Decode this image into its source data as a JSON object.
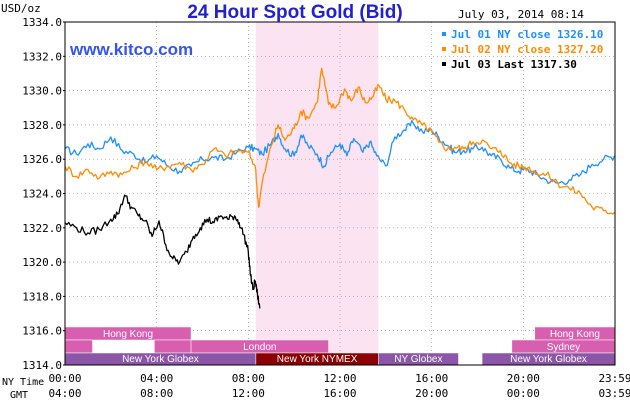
{
  "chart_data": {
    "type": "line",
    "title": "24 Hour Spot Gold (Bid)",
    "watermark": "www.kitco.com",
    "date_stamp": "July 03, 2014 08:14",
    "y_unit_label": "USD/oz",
    "ylim": [
      1314.0,
      1334.0
    ],
    "y_ticks": [
      "1334.0",
      "1332.0",
      "1330.0",
      "1328.0",
      "1326.0",
      "1324.0",
      "1322.0",
      "1320.0",
      "1318.0",
      "1316.0",
      "1314.0"
    ],
    "x_range_hours": [
      0,
      24
    ],
    "ny_time_label": "NY Time",
    "gmt_label": "GMT",
    "ny_time_ticks": [
      "00:00",
      "04:00",
      "08:00",
      "12:00",
      "16:00",
      "20:00",
      "23:59"
    ],
    "gmt_ticks": [
      "04:00",
      "08:00",
      "12:00",
      "16:00",
      "20:00",
      "00:00",
      "03:59"
    ],
    "highlight_hours": [
      8.33,
      13.67
    ],
    "grid": true,
    "legend_position": "top-right",
    "series": [
      {
        "name": "Jul 01 NY close 1326.10",
        "color": "#1e90ff",
        "points": [
          [
            0,
            1326.6
          ],
          [
            0.5,
            1326.3
          ],
          [
            1,
            1326.9
          ],
          [
            1.5,
            1326.6
          ],
          [
            2,
            1327.3
          ],
          [
            2.5,
            1326.5
          ],
          [
            3,
            1326.3
          ],
          [
            3.5,
            1325.8
          ],
          [
            4,
            1326.2
          ],
          [
            4.5,
            1325.6
          ],
          [
            5,
            1325.3
          ],
          [
            5.5,
            1325.6
          ],
          [
            6,
            1326.0
          ],
          [
            6.5,
            1326.1
          ],
          [
            7,
            1326.0
          ],
          [
            7.5,
            1326.4
          ],
          [
            8,
            1326.7
          ],
          [
            8.3,
            1326.6
          ],
          [
            8.6,
            1326.3
          ],
          [
            9,
            1326.9
          ],
          [
            9.3,
            1327.5
          ],
          [
            9.6,
            1326.6
          ],
          [
            10,
            1326.2
          ],
          [
            10.3,
            1327.4
          ],
          [
            10.6,
            1326.8
          ],
          [
            11,
            1326.3
          ],
          [
            11.3,
            1325.6
          ],
          [
            11.6,
            1326.4
          ],
          [
            12,
            1326.9
          ],
          [
            12.3,
            1326.2
          ],
          [
            12.6,
            1327.2
          ],
          [
            13,
            1326.4
          ],
          [
            13.3,
            1327.0
          ],
          [
            13.6,
            1326.2
          ],
          [
            14,
            1325.6
          ],
          [
            14.4,
            1327.3
          ],
          [
            14.8,
            1327.7
          ],
          [
            15.2,
            1328.1
          ],
          [
            15.6,
            1327.6
          ],
          [
            16,
            1327.7
          ],
          [
            16.3,
            1327.3
          ],
          [
            16.7,
            1326.8
          ],
          [
            17,
            1326.4
          ],
          [
            17.4,
            1326.5
          ],
          [
            17.8,
            1326.6
          ],
          [
            18.2,
            1326.7
          ],
          [
            18.6,
            1326.2
          ],
          [
            19,
            1326.0
          ],
          [
            19.4,
            1325.5
          ],
          [
            19.8,
            1325.3
          ],
          [
            20.2,
            1325.4
          ],
          [
            20.6,
            1325.1
          ],
          [
            21,
            1324.8
          ],
          [
            21.5,
            1324.6
          ],
          [
            22,
            1324.8
          ],
          [
            22.5,
            1325.1
          ],
          [
            23,
            1325.7
          ],
          [
            23.5,
            1326.0
          ],
          [
            23.98,
            1326.2
          ]
        ]
      },
      {
        "name": "Jul 02 NY close 1327.20",
        "color": "#ff8c00",
        "points": [
          [
            0,
            1325.6
          ],
          [
            0.5,
            1325.0
          ],
          [
            1,
            1325.4
          ],
          [
            1.5,
            1324.9
          ],
          [
            2,
            1325.3
          ],
          [
            2.5,
            1325.1
          ],
          [
            3,
            1325.5
          ],
          [
            3.5,
            1325.9
          ],
          [
            4,
            1325.4
          ],
          [
            4.5,
            1325.6
          ],
          [
            5,
            1325.8
          ],
          [
            5.5,
            1325.4
          ],
          [
            6,
            1325.7
          ],
          [
            6.5,
            1326.6
          ],
          [
            7,
            1326.2
          ],
          [
            7.5,
            1326.5
          ],
          [
            8,
            1326.4
          ],
          [
            8.3,
            1325.6
          ],
          [
            8.45,
            1323.2
          ],
          [
            8.6,
            1324.6
          ],
          [
            9,
            1326.8
          ],
          [
            9.3,
            1328.0
          ],
          [
            9.6,
            1327.1
          ],
          [
            10,
            1327.8
          ],
          [
            10.3,
            1328.8
          ],
          [
            10.6,
            1328.4
          ],
          [
            11,
            1329.3
          ],
          [
            11.2,
            1331.3
          ],
          [
            11.5,
            1329.2
          ],
          [
            11.8,
            1329.0
          ],
          [
            12.2,
            1330.1
          ],
          [
            12.5,
            1329.4
          ],
          [
            12.8,
            1330.2
          ],
          [
            13.1,
            1329.3
          ],
          [
            13.4,
            1329.6
          ],
          [
            13.7,
            1330.3
          ],
          [
            14,
            1329.5
          ],
          [
            14.4,
            1329.4
          ],
          [
            14.8,
            1328.9
          ],
          [
            15.2,
            1328.3
          ],
          [
            15.6,
            1328.0
          ],
          [
            16,
            1327.6
          ],
          [
            16.3,
            1327.0
          ],
          [
            16.7,
            1326.6
          ],
          [
            17,
            1326.7
          ],
          [
            17.4,
            1326.6
          ],
          [
            17.8,
            1327.0
          ],
          [
            18.2,
            1327.1
          ],
          [
            18.6,
            1326.6
          ],
          [
            19,
            1326.5
          ],
          [
            19.4,
            1325.8
          ],
          [
            19.8,
            1325.6
          ],
          [
            20.2,
            1325.5
          ],
          [
            20.6,
            1325.2
          ],
          [
            21,
            1325.1
          ],
          [
            21.5,
            1324.6
          ],
          [
            22,
            1324.3
          ],
          [
            22.5,
            1324.0
          ],
          [
            23,
            1323.2
          ],
          [
            23.5,
            1323.0
          ],
          [
            23.98,
            1322.9
          ]
        ]
      },
      {
        "name": "Jul 03 Last 1317.30",
        "color": "#000000",
        "points": [
          [
            0,
            1322.3
          ],
          [
            0.5,
            1322.0
          ],
          [
            1,
            1321.7
          ],
          [
            1.5,
            1321.9
          ],
          [
            2,
            1322.5
          ],
          [
            2.3,
            1322.8
          ],
          [
            2.6,
            1323.9
          ],
          [
            2.9,
            1323.2
          ],
          [
            3.2,
            1322.7
          ],
          [
            3.5,
            1322.4
          ],
          [
            3.8,
            1321.5
          ],
          [
            4.1,
            1322.4
          ],
          [
            4.4,
            1321.0
          ],
          [
            4.7,
            1320.2
          ],
          [
            5,
            1320.0
          ],
          [
            5.3,
            1320.6
          ],
          [
            5.6,
            1321.5
          ],
          [
            5.9,
            1322.0
          ],
          [
            6.2,
            1322.5
          ],
          [
            6.5,
            1322.3
          ],
          [
            6.8,
            1322.7
          ],
          [
            7.1,
            1322.5
          ],
          [
            7.4,
            1322.7
          ],
          [
            7.6,
            1322.3
          ],
          [
            7.8,
            1321.6
          ],
          [
            8,
            1320.6
          ],
          [
            8.1,
            1319.2
          ],
          [
            8.2,
            1318.4
          ],
          [
            8.3,
            1318.9
          ],
          [
            8.4,
            1318.1
          ],
          [
            8.5,
            1317.3
          ]
        ]
      }
    ],
    "session_rows": [
      {
        "row": 1,
        "bands": [
          {
            "label": "Hong Kong",
            "start": 0,
            "end": 5.5,
            "color": "#d85fb0",
            "text_color": "#ffffff"
          },
          {
            "label": "Hong Kong",
            "start": 20.5,
            "end": 24,
            "color": "#d85fb0",
            "text_color": "#ffffff"
          }
        ]
      },
      {
        "row": 2,
        "bands": [
          {
            "label": "",
            "start": 0,
            "end": 1.2,
            "color": "#d85fb0",
            "text_color": "#ffffff"
          },
          {
            "label": "",
            "start": 3.9,
            "end": 5.5,
            "color": "#d85fb0",
            "text_color": "#ffffff"
          },
          {
            "label": "London",
            "start": 5.5,
            "end": 11.5,
            "color": "#d85fb0",
            "text_color": "#ffffff"
          },
          {
            "label": "Sydney",
            "start": 19.5,
            "end": 24,
            "color": "#d85fb0",
            "text_color": "#ffffff"
          }
        ]
      },
      {
        "row": 3,
        "bands": [
          {
            "label": "New York Globex",
            "start": 0,
            "end": 8.33,
            "color": "#8b55a8",
            "text_color": "#ffffff"
          },
          {
            "label": "New York NYMEX",
            "start": 8.33,
            "end": 13.67,
            "color": "#8b0000",
            "text_color": "#ffffff"
          },
          {
            "label": "NY Globex",
            "start": 13.67,
            "end": 17.17,
            "color": "#8b55a8",
            "text_color": "#ffffff"
          },
          {
            "label": "New York Globex",
            "start": 18.2,
            "end": 24,
            "color": "#8b55a8",
            "text_color": "#ffffff"
          }
        ]
      }
    ]
  }
}
